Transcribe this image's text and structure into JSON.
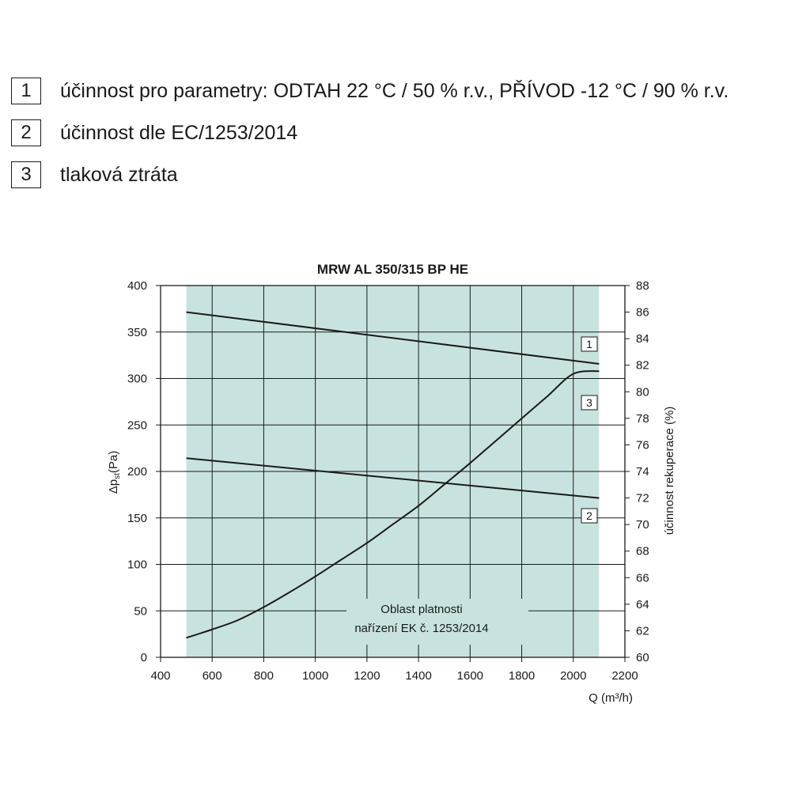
{
  "legend": [
    {
      "number": "1",
      "text": "účinnost pro parametry: ODTAH 22 °C / 50 % r.v., PŘÍVOD -12 °C / 90 % r.v."
    },
    {
      "number": "2",
      "text": "účinnost dle EC/1253/2014"
    },
    {
      "number": "3",
      "text": "tlaková ztráta"
    }
  ],
  "chart_data": {
    "type": "line",
    "title": "MRW AL 350/315 BP HE",
    "xlabel": "Q (m³/h)",
    "ylabel": "Δpst(Pa)",
    "ylabel_main": "Δp",
    "ylabel_sub": "st",
    "ylabel_unit": "(Pa)",
    "y2label": "účinnost rekuperace (%)",
    "xlim": [
      400,
      2200
    ],
    "ylim": [
      0,
      400
    ],
    "y2lim": [
      60,
      88
    ],
    "xticks": [
      400,
      600,
      800,
      1000,
      1200,
      1400,
      1600,
      1800,
      2000,
      2200
    ],
    "yticks": [
      0,
      50,
      100,
      150,
      200,
      250,
      300,
      350,
      400
    ],
    "y2ticks": [
      60,
      62,
      64,
      66,
      68,
      70,
      72,
      74,
      76,
      78,
      80,
      82,
      84,
      86,
      88
    ],
    "grid": true,
    "region": {
      "x": [
        500,
        2100
      ],
      "label_lines": [
        "Oblast platnosti",
        "nařízení EK č. 1253/2014"
      ],
      "color": "#c8e3df"
    },
    "series": [
      {
        "label": "1",
        "axis": "right",
        "x": [
          500,
          2100
        ],
        "y": [
          86,
          82.1
        ]
      },
      {
        "label": "2",
        "axis": "right",
        "x": [
          500,
          2100
        ],
        "y": [
          75,
          72
        ]
      },
      {
        "label": "3",
        "axis": "left",
        "x": [
          500,
          600,
          700,
          800,
          900,
          1000,
          1100,
          1200,
          1300,
          1400,
          1500,
          1600,
          1700,
          1800,
          1900,
          2000,
          2100
        ],
        "y": [
          21,
          30,
          40,
          54,
          70,
          87,
          105,
          123,
          143,
          163,
          186,
          209,
          233,
          257,
          281,
          305,
          308
        ]
      }
    ]
  }
}
